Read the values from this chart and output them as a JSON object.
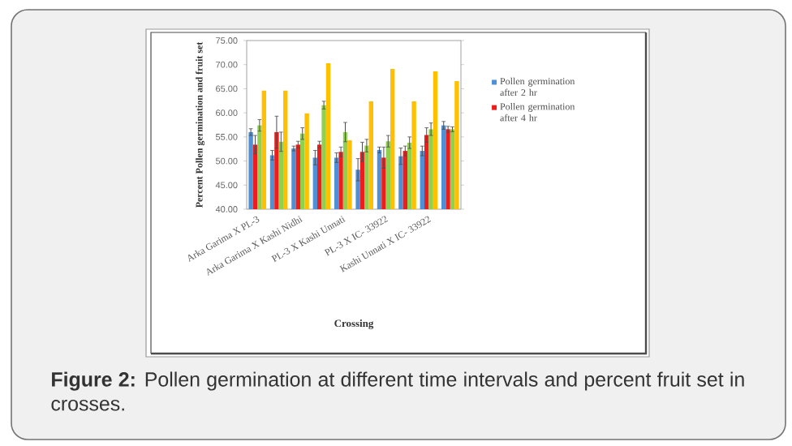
{
  "chart_data": {
    "type": "bar",
    "xlabel": "Crossing",
    "ylabel": "Percent Pollen germination and fruit set",
    "categories": [
      "Arka Garima X PL-3",
      null,
      "Arka Garima X Kashi Nidhi",
      null,
      "PL-3 X Kashi Unnati",
      null,
      "PL-3 X IC- 33922",
      null,
      "Kashi Unnati X IC- 33922",
      null
    ],
    "series": [
      {
        "name": "Pollen germination after 2 hr",
        "color": "#4f8fd6",
        "values": [
          56.0,
          51.2,
          52.6,
          50.7,
          50.7,
          48.2,
          52.3,
          51.0,
          52.1,
          57.4
        ],
        "errors": [
          0.7,
          1.0,
          0.5,
          1.5,
          1.0,
          2.3,
          0.6,
          1.7,
          1.0,
          0.8
        ]
      },
      {
        "name": "Pollen germination after 4 hr",
        "color": "#ee1c1c",
        "values": [
          53.4,
          56.0,
          53.4,
          53.4,
          51.9,
          51.9,
          50.7,
          52.1,
          55.4,
          56.6
        ],
        "errors": [
          1.9,
          3.3,
          0.7,
          0.7,
          1.0,
          2.0,
          2.2,
          1.0,
          1.5,
          0.6
        ]
      },
      {
        "color": "#8fd14f",
        "values": [
          57.4,
          54.0,
          55.7,
          61.6,
          56.0,
          53.2,
          54.1,
          53.8,
          56.6,
          56.6
        ],
        "errors": [
          1.2,
          2.0,
          1.2,
          0.8,
          2.0,
          1.3,
          1.2,
          1.2,
          1.3,
          0.5
        ]
      },
      {
        "color": "#ffc000",
        "values": [
          64.6,
          64.6,
          59.9,
          70.3,
          54.3,
          62.4,
          69.1,
          62.4,
          68.6,
          66.6
        ]
      }
    ],
    "ylim": [
      40,
      75
    ],
    "yticks": [
      {
        "value": 40,
        "label": "40.00"
      },
      {
        "value": 45,
        "label": "45.00"
      },
      {
        "value": 50,
        "label": "50.00"
      },
      {
        "value": 55,
        "label": "55.00"
      },
      {
        "value": 60,
        "label": "60.00"
      },
      {
        "value": 65,
        "label": "65.00"
      },
      {
        "value": 70,
        "label": "70.00"
      },
      {
        "value": 75,
        "label": "75.00"
      }
    ],
    "grid": false,
    "legend": "right",
    "annotations": [
      "**Figure 2:** Pollen germination at different time intervals and percent fruit set in crosses."
    ]
  }
}
